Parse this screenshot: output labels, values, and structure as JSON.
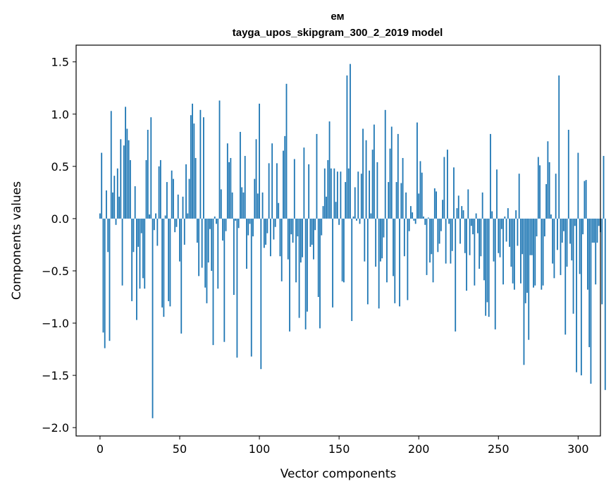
{
  "chart_data": {
    "type": "bar",
    "title_lines": [
      "ем",
      "tayga_upos_skipgram_300_2_2019 model"
    ],
    "xlabel": "Vector components",
    "ylabel": "Components values",
    "xlim": [
      -15,
      314
    ],
    "ylim": [
      -2.08,
      1.66
    ],
    "xticks": [
      0,
      50,
      100,
      150,
      200,
      250,
      300
    ],
    "xtick_labels": [
      "0",
      "50",
      "100",
      "150",
      "200",
      "250",
      "300"
    ],
    "yticks": [
      1.5,
      1.0,
      0.5,
      0.0,
      -0.5,
      -1.0,
      -1.5,
      -2.0
    ],
    "ytick_labels": [
      "1.5",
      "1.0",
      "0.5",
      "0.0",
      "−0.5",
      "−1.0",
      "−1.5",
      "−2.0"
    ],
    "bar_color": "#1f77b4",
    "values": [
      0.05,
      0.63,
      -1.09,
      -1.24,
      0.27,
      -0.32,
      -1.17,
      1.03,
      0.25,
      0.41,
      -0.06,
      0.48,
      0.21,
      0.76,
      -0.64,
      0.7,
      1.07,
      0.86,
      0.75,
      0.56,
      -0.79,
      -0.32,
      0.31,
      -0.97,
      -0.27,
      -0.67,
      -0.14,
      -0.57,
      -0.67,
      0.56,
      0.85,
      0.04,
      0.97,
      -1.91,
      -0.11,
      0.05,
      -0.26,
      0.5,
      0.56,
      -0.85,
      -0.94,
      0.03,
      0.35,
      -0.79,
      -0.84,
      0.46,
      0.38,
      -0.13,
      -0.08,
      0.23,
      -0.41,
      -1.1,
      0.21,
      -0.25,
      0.52,
      0.05,
      0.38,
      0.99,
      1.1,
      0.91,
      0.58,
      -0.23,
      -0.55,
      1.04,
      -0.47,
      0.97,
      -0.66,
      -0.81,
      -0.42,
      -0.1,
      -0.5,
      -1.21,
      0.02,
      -0.05,
      -0.67,
      1.13,
      0.28,
      -0.21,
      -1.18,
      -0.12,
      0.72,
      0.54,
      0.58,
      0.25,
      -0.73,
      -0.02,
      -1.33,
      -0.09,
      0.83,
      0.3,
      0.25,
      0.6,
      -0.48,
      -0.16,
      -0.05,
      -1.32,
      -0.17,
      0.38,
      0.76,
      0.24,
      1.1,
      -1.44,
      0.25,
      -0.28,
      -0.25,
      -0.14,
      0.53,
      -0.36,
      0.72,
      -0.2,
      -0.08,
      0.53,
      0.15,
      -0.36,
      -0.6,
      0.65,
      0.79,
      1.29,
      -0.39,
      -1.08,
      -0.15,
      -0.23,
      0.57,
      -0.61,
      -0.17,
      -0.95,
      -0.42,
      -0.37,
      0.68,
      -1.06,
      -0.89,
      0.52,
      -0.27,
      -0.25,
      -0.39,
      -0.11,
      0.81,
      -0.75,
      -1.05,
      -0.16,
      0.12,
      0.48,
      0.21,
      0.56,
      0.93,
      0.48,
      -0.85,
      0.48,
      0.16,
      0.45,
      -0.06,
      0.45,
      -0.6,
      -0.61,
      0.35,
      1.37,
      0.48,
      1.48,
      -0.98,
      0.02,
      0.3,
      -0.02,
      0.45,
      -0.05,
      0.43,
      0.86,
      -0.41,
      0.75,
      -0.82,
      0.46,
      0.05,
      0.66,
      0.9,
      -0.46,
      0.54,
      -0.86,
      -0.41,
      -0.38,
      -0.18,
      1.04,
      -0.61,
      0.35,
      0.67,
      0.88,
      -0.55,
      -0.81,
      0.35,
      0.81,
      -0.84,
      0.34,
      0.58,
      -0.36,
      0.25,
      -0.78,
      -0.12,
      0.12,
      0.06,
      -0.02,
      -0.05,
      0.92,
      0.24,
      0.55,
      0.44,
      0.02,
      -0.06,
      -0.54,
      0.01,
      -0.42,
      -0.34,
      -0.61,
      0.29,
      0.26,
      -0.32,
      -0.24,
      -0.12,
      0.18,
      0.59,
      -0.43,
      0.66,
      -0.05,
      -0.43,
      -0.31,
      0.49,
      -1.08,
      0.1,
      0.22,
      -0.24,
      0.12,
      0.08,
      -0.33,
      -0.69,
      0.28,
      -0.35,
      -0.07,
      -0.15,
      -0.64,
      0.05,
      -0.14,
      -0.48,
      -0.36,
      0.25,
      -0.59,
      -0.93,
      -0.8,
      -0.94,
      0.81,
      0.07,
      -0.41,
      -1.06,
      0.47,
      -0.33,
      -0.37,
      -0.1,
      -0.63,
      0.02,
      -0.22,
      0.1,
      -0.27,
      -0.46,
      -0.62,
      -0.68,
      0.08,
      -0.26,
      0.43,
      -0.62,
      -0.34,
      -1.4,
      -0.81,
      -0.71,
      -1.16,
      -0.35,
      -0.35,
      -0.66,
      -0.64,
      -0.17,
      0.59,
      0.51,
      -0.68,
      -0.64,
      -0.17,
      0.33,
      0.74,
      0.54,
      0.04,
      -0.43,
      -0.57,
      0.43,
      -0.3,
      1.37,
      -0.54,
      -0.23,
      -0.12,
      -1.11,
      -0.46,
      0.85,
      -0.24,
      -0.4,
      -0.91,
      -0.07,
      -1.47,
      0.63,
      -0.53,
      -1.5,
      -0.15,
      0.36,
      0.37,
      -0.68,
      -1.23,
      -1.58,
      -0.23,
      -0.23,
      -0.63,
      -0.23,
      -0.07,
      -0.13,
      -0.82,
      0.6,
      -1.64
    ]
  }
}
